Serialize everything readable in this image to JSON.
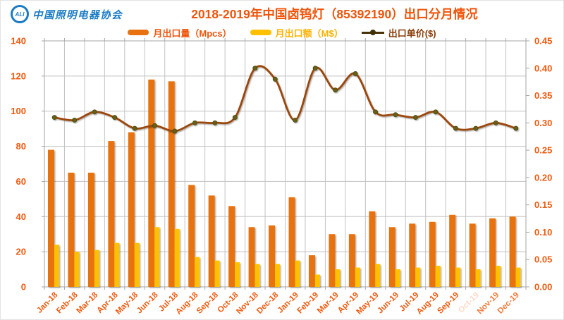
{
  "header": {
    "logo_initials": "ALI",
    "logo_text": "中国照明电器协会",
    "title": "2018-2019年中国卤钨灯（85392190）出口分月情况"
  },
  "legend": [
    {
      "label": "月出口量（Mpcs）",
      "type": "bar",
      "swatch_color": "#e8720e",
      "text_color": "#f0540a"
    },
    {
      "label": "月出口额（M$）",
      "type": "bar",
      "swatch_color": "#ffc000",
      "text_color": "#ffb100"
    },
    {
      "label": "出口单价($)",
      "type": "line",
      "swatch_color": "#4a3208",
      "marker_color": "#3d3208",
      "text_color": "#8a3c08"
    }
  ],
  "chart_data": {
    "type": "bar+line combo",
    "title": "2018-2019年中国卤钨灯（85392190）出口分月情况",
    "categories": [
      "Jan-18",
      "Feb-18",
      "Mar-18",
      "Apr-18",
      "May-18",
      "Jun-18",
      "Jul-18",
      "Aug-18",
      "Sep-18",
      "Oct-18",
      "Nov-18",
      "Dec-18",
      "Jan-19",
      "Feb-19",
      "Mar-19",
      "Apr-19",
      "May-19",
      "Jun-19",
      "Jul-19",
      "Aug-19",
      "Sep-19",
      "Oct-19",
      "Nov-19",
      "Dec-19"
    ],
    "series": [
      {
        "name": "月出口量（Mpcs）",
        "type": "bar",
        "axis": "left",
        "color": "#e8720e",
        "values": [
          78,
          65,
          65,
          83,
          88,
          118,
          117,
          58,
          52,
          46,
          34,
          35,
          51,
          18,
          30,
          30,
          43,
          34,
          36,
          37,
          41,
          36,
          39,
          40
        ]
      },
      {
        "name": "月出口额（M$）",
        "type": "bar",
        "axis": "left",
        "color": "#ffc000",
        "values": [
          24,
          20,
          21,
          25,
          25,
          34,
          33,
          17,
          15,
          14,
          13,
          13,
          15,
          7,
          10,
          11,
          13,
          10,
          11,
          12,
          11,
          10,
          12,
          11
        ]
      },
      {
        "name": "出口单价($)",
        "type": "line",
        "axis": "right",
        "color": "#9c4708",
        "marker_color": "#665f14",
        "values": [
          0.31,
          0.305,
          0.32,
          0.31,
          0.29,
          0.295,
          0.285,
          0.3,
          0.3,
          0.31,
          0.4,
          0.38,
          0.305,
          0.4,
          0.36,
          0.39,
          0.32,
          0.315,
          0.31,
          0.32,
          0.29,
          0.29,
          0.3,
          0.29
        ]
      }
    ],
    "left_axis": {
      "min": 0,
      "max": 140,
      "step": 20,
      "labels": [
        "0",
        "20",
        "40",
        "60",
        "80",
        "100",
        "120",
        "140"
      ]
    },
    "right_axis": {
      "min": 0,
      "max": 0.45,
      "step": 0.05,
      "labels": [
        "0.00",
        "0.05",
        "0.10",
        "0.15",
        "0.20",
        "0.25",
        "0.30",
        "0.35",
        "0.40",
        "0.45"
      ]
    },
    "grid": true,
    "legend_position": "top",
    "axis_label_color": "#f2590c",
    "grid_color": "#c2c2c2",
    "border_color": "#a6a6a6",
    "faded_x_labels": {
      "Oct-19": 0.22,
      "Nov-19": 0.8,
      "Dec-19": 0.8
    }
  }
}
